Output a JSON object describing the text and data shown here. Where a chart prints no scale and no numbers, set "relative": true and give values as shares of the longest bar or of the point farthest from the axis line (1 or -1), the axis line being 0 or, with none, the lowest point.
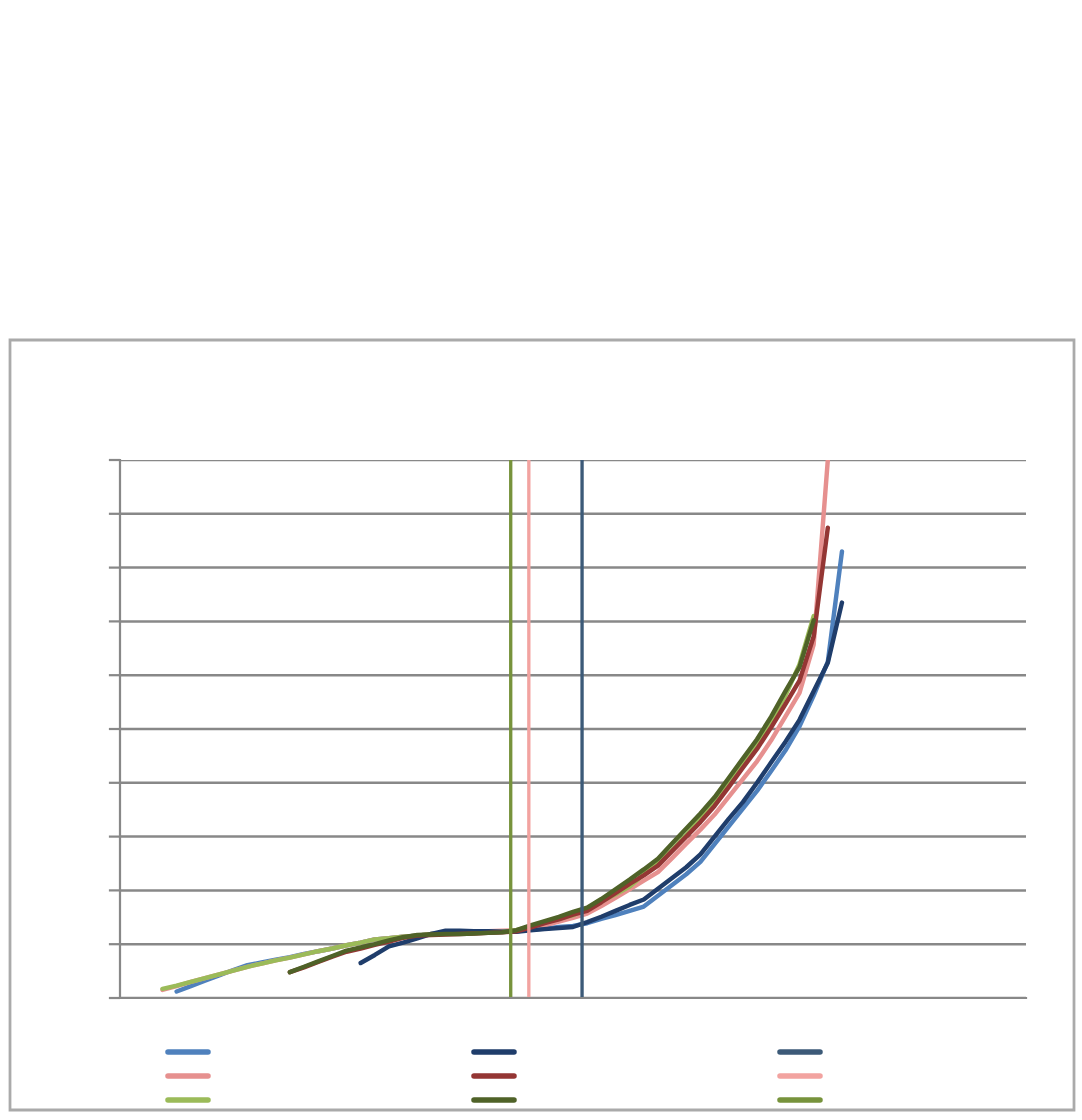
{
  "chart_data": {
    "type": "line",
    "relative": true,
    "grid": "y",
    "tick_labels": false,
    "marker": "none",
    "line_style": "solid",
    "categories": [
      null,
      null,
      null,
      null,
      null,
      null,
      null,
      null,
      null,
      null,
      null,
      null,
      null,
      null,
      null,
      null,
      null,
      null,
      null,
      null,
      null,
      null,
      null,
      null,
      null,
      null,
      null,
      null,
      null,
      null,
      null,
      null,
      null,
      null,
      null,
      null,
      null,
      null,
      null,
      null,
      null,
      null,
      null,
      null,
      null,
      null,
      null,
      null,
      null,
      null,
      null,
      null,
      null,
      null,
      null,
      null,
      null,
      null,
      null,
      null,
      null,
      null,
      null,
      null,
      null
    ],
    "series": [
      {
        "color": "#4f81bd",
        "values": [
          null,
          null,
          null,
          null,
          0.012,
          0.022,
          0.032,
          0.042,
          0.052,
          0.061,
          0.066,
          0.071,
          0.076,
          0.082,
          0.087,
          0.092,
          0.098,
          0.103,
          0.109,
          0.111,
          0.114,
          0.116,
          0.119,
          0.121,
          0.121,
          0.122,
          0.122,
          0.123,
          0.124,
          0.127,
          0.129,
          0.132,
          0.134,
          0.139,
          0.147,
          0.154,
          0.162,
          0.17,
          0.19,
          0.21,
          0.23,
          0.253,
          0.286,
          0.319,
          0.352,
          0.385,
          0.422,
          0.46,
          0.505,
          0.562,
          0.625,
          0.83,
          null,
          null,
          null,
          null,
          null,
          null,
          null,
          null,
          null,
          null,
          null,
          null,
          null
        ]
      },
      {
        "color": "#e6908f",
        "values": [
          null,
          null,
          null,
          0.015,
          0.022,
          0.03,
          0.037,
          0.044,
          0.051,
          0.058,
          0.064,
          0.07,
          0.075,
          0.081,
          0.087,
          0.092,
          0.098,
          0.103,
          0.109,
          0.111,
          0.114,
          0.116,
          0.119,
          0.121,
          0.122,
          0.123,
          0.124,
          0.125,
          0.126,
          0.128,
          0.135,
          0.142,
          0.149,
          0.157,
          0.171,
          0.186,
          0.202,
          0.218,
          0.234,
          0.26,
          0.287,
          0.313,
          0.341,
          0.374,
          0.407,
          0.44,
          0.479,
          0.523,
          0.567,
          0.657,
          1.0,
          null,
          null,
          null,
          null,
          null,
          null,
          null,
          null,
          null,
          null,
          null,
          null,
          null,
          null
        ]
      },
      {
        "color": "#9bbb59",
        "values": [
          null,
          null,
          null,
          0.017,
          0.023,
          0.03,
          0.037,
          0.044,
          0.051,
          0.058,
          0.064,
          0.07,
          0.075,
          0.081,
          0.087,
          0.092,
          0.098,
          0.103,
          0.109,
          0.111,
          0.114,
          0.116,
          0.119,
          0.121,
          0.121,
          0.122,
          0.122,
          0.123,
          0.126,
          0.133,
          0.14,
          0.147,
          0.154,
          0.166,
          0.18,
          0.193,
          0.207,
          0.23,
          0.252,
          0.275,
          0.303,
          0.333,
          0.363,
          0.396,
          0.435,
          0.473,
          0.515,
          0.562,
          0.62,
          0.71,
          null,
          null,
          null,
          null,
          null,
          null,
          null,
          null,
          null,
          null,
          null,
          null,
          null,
          null,
          null
        ]
      },
      {
        "color": "#1f3d6b",
        "values": [
          null,
          null,
          null,
          null,
          null,
          null,
          null,
          null,
          null,
          null,
          null,
          null,
          null,
          null,
          null,
          null,
          null,
          0.065,
          0.08,
          0.096,
          0.103,
          0.111,
          0.119,
          0.125,
          0.125,
          0.124,
          0.124,
          0.123,
          0.123,
          0.126,
          0.128,
          0.13,
          0.132,
          0.141,
          0.151,
          0.162,
          0.173,
          0.183,
          0.203,
          0.223,
          0.243,
          0.267,
          0.3,
          0.333,
          0.364,
          0.4,
          0.438,
          0.476,
          0.517,
          0.57,
          0.623,
          0.735,
          null,
          null,
          null,
          null,
          null,
          null,
          null,
          null,
          null,
          null,
          null,
          null,
          null
        ]
      },
      {
        "color": "#943634",
        "values": [
          null,
          null,
          null,
          null,
          null,
          null,
          null,
          null,
          null,
          null,
          null,
          null,
          0.048,
          0.057,
          0.067,
          0.077,
          0.086,
          0.092,
          0.099,
          0.105,
          0.112,
          0.116,
          0.117,
          0.118,
          0.119,
          0.12,
          0.121,
          0.122,
          0.124,
          0.131,
          0.139,
          0.146,
          0.155,
          0.162,
          0.178,
          0.195,
          0.212,
          0.228,
          0.246,
          0.273,
          0.3,
          0.327,
          0.357,
          0.392,
          0.428,
          0.463,
          0.503,
          0.546,
          0.59,
          0.672,
          0.874,
          null,
          null,
          null,
          null,
          null,
          null,
          null,
          null,
          null,
          null,
          null,
          null,
          null,
          null
        ]
      },
      {
        "color": "#4f6228",
        "values": [
          null,
          null,
          null,
          null,
          null,
          null,
          null,
          null,
          null,
          null,
          null,
          null,
          0.048,
          0.058,
          0.068,
          0.078,
          0.088,
          0.094,
          0.1,
          0.107,
          0.113,
          0.117,
          0.118,
          0.119,
          0.119,
          0.12,
          0.121,
          0.122,
          0.126,
          0.135,
          0.143,
          0.151,
          0.16,
          0.168,
          0.184,
          0.202,
          0.22,
          0.239,
          0.259,
          0.287,
          0.315,
          0.343,
          0.373,
          0.409,
          0.445,
          0.481,
          0.523,
          0.57,
          0.615,
          0.702,
          null,
          null,
          null,
          null,
          null,
          null,
          null,
          null,
          null,
          null,
          null,
          null,
          null,
          null,
          null
        ]
      }
    ]
  }
}
